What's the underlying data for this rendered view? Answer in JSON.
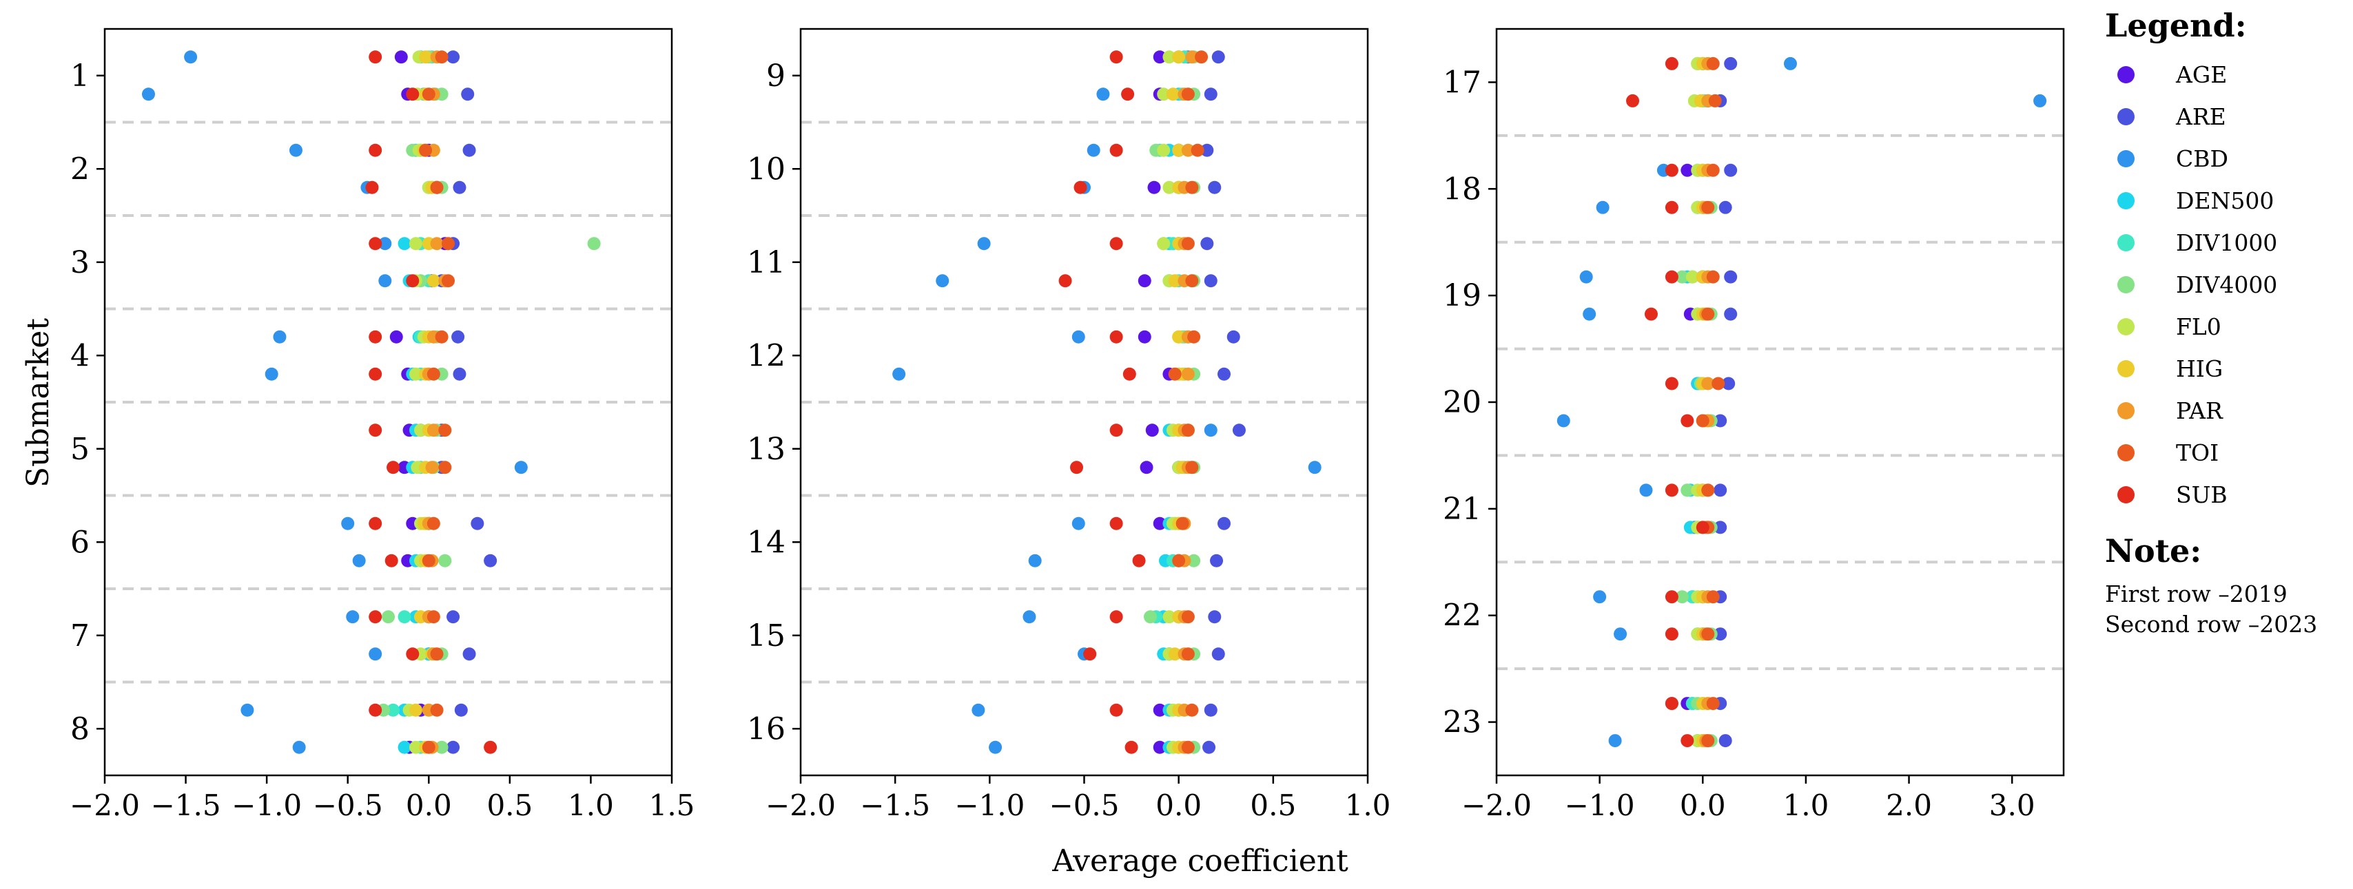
{
  "chart_data": {
    "type": "scatter",
    "ylabel": "Submarket",
    "xlabel": "Average coefficient",
    "series_names": [
      "AGE",
      "ARE",
      "CBD",
      "DEN500",
      "DIV1000",
      "DIV4000",
      "FL0",
      "HIG",
      "PAR",
      "TOI",
      "SUB"
    ],
    "colors": [
      "#5b14e8",
      "#4a52e0",
      "#2f92ec",
      "#1cd6ee",
      "#3ee8c4",
      "#86e286",
      "#c0e650",
      "#ebcc2a",
      "#f19a2a",
      "#ea5a1e",
      "#e42a1a"
    ],
    "panels": [
      {
        "submarkets": [
          1,
          2,
          3,
          4,
          5,
          6,
          7,
          8
        ],
        "xlim": [
          -2.0,
          1.5
        ],
        "xticks": [
          "-2.0",
          "-1.5",
          "-1.0",
          "-0.5",
          "0.0",
          "0.5",
          "1.0",
          "1.5"
        ],
        "values": {
          "1": [
            [
              -0.17,
              0.15,
              -1.47,
              -0.05,
              0.02,
              0.0,
              -0.06,
              -0.02,
              0.05,
              0.08,
              -0.33
            ],
            [
              -0.13,
              0.24,
              -1.73,
              -0.03,
              0.04,
              0.08,
              -0.07,
              -0.02,
              0.03,
              0.0,
              -0.1
            ]
          ],
          "2": [
            [
              0.0,
              0.25,
              -0.82,
              -0.08,
              -0.05,
              -0.1,
              -0.06,
              -0.03,
              0.03,
              -0.02,
              -0.33
            ],
            [
              0.05,
              0.19,
              -0.38,
              0.0,
              0.02,
              0.08,
              0.0,
              0.02,
              0.05,
              0.05,
              -0.35
            ]
          ],
          "3": [
            [
              0.1,
              0.15,
              -0.27,
              -0.15,
              -0.05,
              1.02,
              -0.08,
              0.0,
              0.05,
              0.12,
              -0.33
            ],
            [
              0.02,
              0.08,
              -0.27,
              -0.12,
              0.0,
              -0.05,
              -0.08,
              0.03,
              0.1,
              0.12,
              -0.1
            ]
          ],
          "4": [
            [
              -0.2,
              0.18,
              -0.92,
              -0.06,
              -0.05,
              0.05,
              -0.03,
              0.0,
              0.03,
              0.08,
              -0.33
            ],
            [
              -0.13,
              0.19,
              -0.97,
              -0.1,
              -0.05,
              0.08,
              -0.08,
              -0.02,
              0.0,
              0.03,
              -0.33
            ]
          ],
          "5": [
            [
              -0.12,
              0.08,
              -0.05,
              -0.08,
              0.0,
              0.05,
              -0.05,
              0.0,
              0.03,
              0.1,
              -0.33
            ],
            [
              -0.15,
              0.08,
              0.57,
              -0.1,
              -0.05,
              0.03,
              -0.07,
              -0.02,
              0.02,
              0.1,
              -0.22
            ]
          ],
          "6": [
            [
              -0.1,
              0.3,
              -0.5,
              0.0,
              0.0,
              -0.02,
              -0.05,
              -0.03,
              0.0,
              0.03,
              -0.33
            ],
            [
              -0.13,
              0.38,
              -0.43,
              -0.08,
              -0.05,
              0.1,
              -0.05,
              -0.02,
              0.02,
              0.0,
              -0.23
            ]
          ],
          "7": [
            [
              0.0,
              0.15,
              -0.47,
              -0.08,
              -0.15,
              -0.25,
              -0.05,
              -0.05,
              0.0,
              0.03,
              -0.33
            ],
            [
              0.0,
              0.25,
              -0.33,
              0.0,
              0.02,
              0.08,
              -0.05,
              0.02,
              0.03,
              0.05,
              -0.1
            ]
          ],
          "8": [
            [
              -0.05,
              0.2,
              -1.12,
              -0.15,
              -0.22,
              -0.28,
              -0.12,
              -0.08,
              0.0,
              0.05,
              -0.33
            ],
            [
              -0.12,
              0.15,
              -0.8,
              -0.15,
              -0.05,
              0.08,
              -0.08,
              -0.02,
              0.02,
              0.0,
              0.38
            ]
          ]
        }
      },
      {
        "submarkets": [
          9,
          10,
          11,
          12,
          13,
          14,
          15,
          16
        ],
        "xlim": [
          -2.0,
          1.0
        ],
        "xticks": [
          "-2.0",
          "-1.5",
          "-1.0",
          "-0.5",
          "0.0",
          "0.5",
          "1.0"
        ],
        "values": {
          "9": [
            [
              -0.1,
              0.21,
              0.05,
              0.0,
              0.03,
              0.08,
              -0.05,
              0.0,
              0.07,
              0.12,
              -0.33
            ],
            [
              -0.1,
              0.17,
              -0.4,
              0.0,
              0.02,
              0.08,
              -0.08,
              -0.03,
              0.03,
              0.05,
              -0.27
            ]
          ],
          "10": [
            [
              0.0,
              0.15,
              -0.45,
              -0.05,
              -0.1,
              -0.12,
              -0.08,
              0.0,
              0.05,
              0.1,
              -0.33
            ],
            [
              -0.13,
              0.19,
              -0.5,
              0.0,
              0.0,
              0.08,
              -0.05,
              0.0,
              0.03,
              0.07,
              -0.52
            ]
          ],
          "11": [
            [
              0.0,
              0.15,
              -1.03,
              -0.05,
              -0.03,
              -0.08,
              -0.08,
              0.0,
              0.03,
              0.05,
              -0.33
            ],
            [
              -0.18,
              0.17,
              -1.25,
              -0.05,
              0.0,
              0.08,
              -0.05,
              -0.02,
              0.03,
              0.07,
              -0.6
            ]
          ],
          "12": [
            [
              -0.18,
              0.29,
              -0.53,
              0.05,
              0.03,
              0.02,
              0.0,
              0.0,
              0.05,
              0.08,
              -0.33
            ],
            [
              -0.05,
              0.24,
              -1.48,
              0.0,
              0.03,
              0.08,
              0.0,
              0.02,
              0.05,
              -0.02,
              -0.26
            ]
          ],
          "13": [
            [
              -0.14,
              0.32,
              0.17,
              -0.05,
              0.0,
              0.05,
              -0.03,
              0.0,
              0.03,
              0.05,
              -0.33
            ],
            [
              -0.17,
              0.0,
              0.72,
              0.0,
              0.03,
              0.08,
              0.0,
              0.02,
              0.05,
              0.07,
              -0.54
            ]
          ],
          "14": [
            [
              -0.1,
              0.24,
              -0.53,
              -0.05,
              0.0,
              -0.02,
              -0.03,
              0.0,
              0.03,
              0.02,
              -0.33
            ],
            [
              0.0,
              0.2,
              -0.76,
              -0.07,
              -0.03,
              0.08,
              0.0,
              0.0,
              0.03,
              0.0,
              -0.21
            ]
          ],
          "15": [
            [
              0.0,
              0.19,
              -0.79,
              -0.08,
              -0.12,
              -0.15,
              -0.05,
              0.0,
              0.03,
              0.05,
              -0.33
            ],
            [
              -0.05,
              0.21,
              -0.5,
              -0.08,
              -0.05,
              0.08,
              -0.05,
              -0.02,
              0.03,
              0.05,
              -0.47
            ]
          ],
          "16": [
            [
              -0.1,
              0.17,
              -1.06,
              -0.05,
              0.0,
              0.0,
              -0.03,
              0.0,
              0.03,
              0.07,
              -0.33
            ],
            [
              -0.1,
              0.16,
              -0.97,
              -0.05,
              0.0,
              0.08,
              -0.03,
              0.0,
              0.03,
              0.05,
              -0.25
            ]
          ]
        }
      },
      {
        "submarkets": [
          17,
          18,
          19,
          20,
          21,
          22,
          23
        ],
        "xlim": [
          -2.0,
          3.5
        ],
        "xticks": [
          "-2.0",
          "-1.0",
          "0.0",
          "1.0",
          "2.0",
          "3.0"
        ],
        "values": {
          "17": [
            [
              0.0,
              0.27,
              0.85,
              0.0,
              -0.05,
              -0.05,
              -0.05,
              0.0,
              0.05,
              0.1,
              -0.3
            ],
            [
              0.05,
              0.17,
              3.27,
              0.0,
              0.02,
              0.0,
              -0.08,
              -0.02,
              0.05,
              0.12,
              -0.68
            ]
          ],
          "18": [
            [
              -0.15,
              0.27,
              -0.38,
              -0.05,
              0.0,
              0.05,
              -0.05,
              0.0,
              0.05,
              0.1,
              -0.3
            ],
            [
              0.0,
              0.22,
              -0.97,
              -0.05,
              0.0,
              0.08,
              -0.05,
              0.0,
              0.03,
              0.05,
              -0.3
            ]
          ],
          "19": [
            [
              0.0,
              0.27,
              -1.13,
              -0.15,
              -0.1,
              -0.2,
              -0.1,
              0.0,
              0.05,
              0.1,
              -0.3
            ],
            [
              -0.12,
              0.27,
              -1.1,
              -0.05,
              0.0,
              0.08,
              -0.05,
              0.0,
              0.03,
              0.05,
              -0.5
            ]
          ],
          "20": [
            [
              -0.05,
              0.25,
              -0.05,
              -0.05,
              0.0,
              -0.02,
              0.0,
              0.0,
              0.05,
              0.15,
              -0.3
            ],
            [
              0.0,
              0.17,
              -1.35,
              0.0,
              0.02,
              0.08,
              0.0,
              0.02,
              0.05,
              0.0,
              -0.15
            ]
          ],
          "21": [
            [
              0.0,
              0.17,
              -0.55,
              -0.12,
              -0.15,
              -0.15,
              -0.05,
              0.0,
              0.05,
              0.05,
              -0.3
            ],
            [
              -0.05,
              0.17,
              -0.08,
              -0.12,
              -0.05,
              0.08,
              -0.05,
              0.0,
              0.03,
              0.05,
              0.0
            ]
          ],
          "22": [
            [
              0.0,
              0.17,
              -1.0,
              -0.1,
              -0.1,
              -0.2,
              -0.05,
              0.0,
              0.05,
              0.1,
              -0.3
            ],
            [
              0.0,
              0.17,
              -0.8,
              -0.05,
              0.0,
              0.08,
              -0.05,
              0.0,
              0.03,
              0.05,
              -0.3
            ]
          ],
          "23": [
            [
              -0.15,
              0.17,
              -0.3,
              -0.1,
              -0.1,
              -0.05,
              0.0,
              0.0,
              0.05,
              0.1,
              -0.3
            ],
            [
              0.0,
              0.22,
              -0.85,
              -0.05,
              0.0,
              0.08,
              -0.05,
              0.0,
              0.03,
              0.05,
              -0.15
            ]
          ]
        }
      }
    ]
  },
  "legend": {
    "title": "Legend:",
    "items": [
      {
        "label": "AGE",
        "color": "#5b14e8"
      },
      {
        "label": "ARE",
        "color": "#4a52e0"
      },
      {
        "label": "CBD",
        "color": "#2f92ec"
      },
      {
        "label": "DEN500",
        "color": "#1cd6ee"
      },
      {
        "label": "DIV1000",
        "color": "#3ee8c4"
      },
      {
        "label": "DIV4000",
        "color": "#86e286"
      },
      {
        "label": "FL0",
        "color": "#c0e650"
      },
      {
        "label": "HIG",
        "color": "#ebcc2a"
      },
      {
        "label": "PAR",
        "color": "#f19a2a"
      },
      {
        "label": "TOI",
        "color": "#ea5a1e"
      },
      {
        "label": "SUB",
        "color": "#e42a1a"
      }
    ]
  },
  "note": {
    "title": "Note:",
    "line1": "First row –2019",
    "line2": "Second row –2023"
  }
}
